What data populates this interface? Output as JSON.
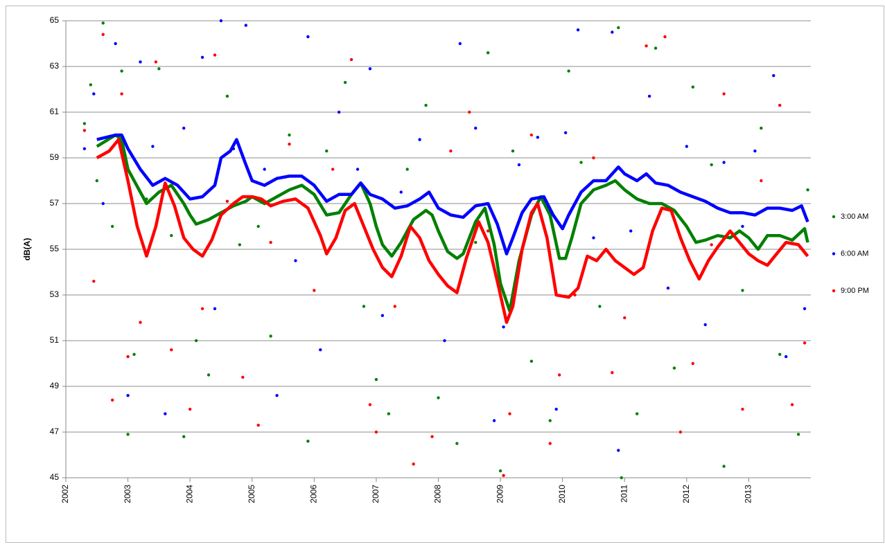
{
  "chart_data": {
    "type": "scatter",
    "y_label": "dB(A)",
    "xlim": [
      2002,
      2014
    ],
    "xticks": [
      2002,
      2003,
      2004,
      2005,
      2006,
      2007,
      2008,
      2009,
      2010,
      2011,
      2012,
      2013
    ],
    "ylim": [
      45,
      65
    ],
    "yticks": [
      45,
      47,
      49,
      51,
      53,
      55,
      57,
      59,
      61,
      63,
      65
    ],
    "grid": true,
    "legend": "right",
    "series": [
      {
        "name": "3:00 AM",
        "color": "#008000",
        "points": {
          "x": [
            2002.3,
            2002.4,
            2002.5,
            2002.6,
            2002.75,
            2002.9,
            2003.0,
            2003.1,
            2003.3,
            2003.5,
            2003.7,
            2003.9,
            2004.1,
            2004.3,
            2004.6,
            2004.8,
            2005.1,
            2005.3,
            2005.6,
            2005.9,
            2006.2,
            2006.5,
            2006.8,
            2007.0,
            2007.2,
            2007.5,
            2007.8,
            2008.0,
            2008.3,
            2008.6,
            2008.8,
            2009.0,
            2009.2,
            2009.5,
            2009.8,
            2010.1,
            2010.3,
            2010.6,
            2010.9,
            2010.95,
            2011.2,
            2011.5,
            2011.8,
            2012.1,
            2012.4,
            2012.6,
            2012.9,
            2013.2,
            2013.5,
            2013.8,
            2013.95
          ],
          "values": [
            60.5,
            62.2,
            58,
            64.9,
            56,
            62.8,
            46.9,
            50.4,
            57.2,
            62.9,
            55.6,
            46.8,
            51,
            49.5,
            61.7,
            55.2,
            56,
            51.2,
            60,
            46.6,
            59.3,
            62.3,
            52.5,
            49.3,
            47.8,
            58.5,
            61.3,
            48.5,
            46.5,
            55.3,
            63.6,
            45.3,
            59.3,
            50.1,
            47.5,
            62.8,
            58.8,
            52.5,
            64.7,
            45,
            47.8,
            63.8,
            49.8,
            62.1,
            58.7,
            45.5,
            53.2,
            60.3,
            50.4,
            46.9,
            57.6
          ]
        },
        "trend": {
          "x": [
            2002.5,
            2002.8,
            2002.9,
            2003.0,
            2003.2,
            2003.3,
            2003.5,
            2003.7,
            2003.9,
            2004.0,
            2004.1,
            2004.3,
            2004.5,
            2004.7,
            2004.9,
            2005.0,
            2005.2,
            2005.4,
            2005.6,
            2005.8,
            2006.0,
            2006.2,
            2006.4,
            2006.6,
            2006.75,
            2006.9,
            2007.0,
            2007.1,
            2007.25,
            2007.4,
            2007.6,
            2007.8,
            2007.9,
            2008.0,
            2008.15,
            2008.3,
            2008.4,
            2008.6,
            2008.75,
            2008.9,
            2009.0,
            2009.15,
            2009.3,
            2009.5,
            2009.65,
            2009.8,
            2009.95,
            2010.05,
            2010.15,
            2010.3,
            2010.5,
            2010.7,
            2010.85,
            2011.0,
            2011.2,
            2011.4,
            2011.6,
            2011.8,
            2012.0,
            2012.15,
            2012.3,
            2012.5,
            2012.7,
            2012.85,
            2013.0,
            2013.15,
            2013.3,
            2013.5,
            2013.7,
            2013.9,
            2013.95
          ],
          "values": [
            59.5,
            60,
            59.8,
            58.5,
            57.5,
            57,
            57.5,
            57.8,
            57,
            56.5,
            56.1,
            56.3,
            56.6,
            56.9,
            57.1,
            57.3,
            57,
            57.3,
            57.6,
            57.8,
            57.4,
            56.5,
            56.6,
            57.4,
            57.9,
            57,
            56,
            55.2,
            54.7,
            55.3,
            56.3,
            56.7,
            56.5,
            55.8,
            54.9,
            54.6,
            54.8,
            56.2,
            56.8,
            55.2,
            53.5,
            52.3,
            54.5,
            56.5,
            57.3,
            56.5,
            54.6,
            54.6,
            55.5,
            57,
            57.6,
            57.8,
            58,
            57.6,
            57.2,
            57,
            57,
            56.7,
            56,
            55.3,
            55.4,
            55.6,
            55.5,
            55.8,
            55.5,
            55,
            55.6,
            55.6,
            55.4,
            55.9,
            55.3
          ]
        }
      },
      {
        "name": "6:00 AM",
        "color": "#0000ff",
        "points": {
          "x": [
            2002.3,
            2002.45,
            2002.6,
            2002.8,
            2003.0,
            2003.2,
            2003.4,
            2003.6,
            2003.9,
            2004.2,
            2004.4,
            2004.5,
            2004.7,
            2004.9,
            2005.2,
            2005.4,
            2005.7,
            2005.9,
            2006.1,
            2006.4,
            2006.7,
            2006.9,
            2007.1,
            2007.4,
            2007.7,
            2008.1,
            2008.35,
            2008.6,
            2008.9,
            2009.05,
            2009.3,
            2009.6,
            2009.9,
            2010.05,
            2010.25,
            2010.5,
            2010.8,
            2010.9,
            2011.1,
            2011.4,
            2011.7,
            2012.0,
            2012.3,
            2012.6,
            2012.9,
            2013.1,
            2013.4,
            2013.6,
            2013.9
          ],
          "values": [
            59.4,
            61.8,
            57,
            64,
            48.6,
            63.2,
            59.5,
            47.8,
            60.3,
            63.4,
            52.4,
            65,
            59.4,
            64.8,
            58.5,
            48.6,
            54.5,
            64.3,
            50.6,
            61,
            58.5,
            62.9,
            52.1,
            57.5,
            59.8,
            51,
            64,
            60.3,
            47.5,
            51.6,
            58.7,
            59.9,
            48,
            60.1,
            64.6,
            55.5,
            64.5,
            46.2,
            55.8,
            61.7,
            53.3,
            59.5,
            51.7,
            58.8,
            56,
            59.3,
            62.6,
            50.3,
            52.4
          ]
        },
        "trend": {
          "x": [
            2002.5,
            2002.8,
            2002.9,
            2003.0,
            2003.2,
            2003.4,
            2003.6,
            2003.8,
            2004.0,
            2004.2,
            2004.4,
            2004.5,
            2004.65,
            2004.75,
            2004.9,
            2005.0,
            2005.2,
            2005.4,
            2005.6,
            2005.8,
            2006.0,
            2006.2,
            2006.4,
            2006.6,
            2006.75,
            2006.9,
            2007.1,
            2007.3,
            2007.5,
            2007.7,
            2007.85,
            2008.0,
            2008.2,
            2008.4,
            2008.6,
            2008.8,
            2008.95,
            2009.1,
            2009.2,
            2009.35,
            2009.5,
            2009.7,
            2009.85,
            2010.0,
            2010.1,
            2010.3,
            2010.5,
            2010.7,
            2010.9,
            2011.0,
            2011.2,
            2011.35,
            2011.5,
            2011.7,
            2011.9,
            2012.1,
            2012.3,
            2012.5,
            2012.7,
            2012.9,
            2013.1,
            2013.3,
            2013.5,
            2013.7,
            2013.85,
            2013.95
          ],
          "values": [
            59.8,
            60,
            60,
            59.4,
            58.5,
            57.8,
            58.1,
            57.8,
            57.2,
            57.3,
            57.8,
            59,
            59.3,
            59.8,
            58.7,
            58,
            57.8,
            58.1,
            58.2,
            58.2,
            57.8,
            57.1,
            57.4,
            57.4,
            57.9,
            57.4,
            57.2,
            56.8,
            56.9,
            57.2,
            57.5,
            56.8,
            56.5,
            56.4,
            56.9,
            57,
            56.1,
            54.8,
            55.5,
            56.6,
            57.2,
            57.3,
            56.5,
            55.9,
            56.5,
            57.5,
            58,
            58,
            58.6,
            58.3,
            58,
            58.3,
            57.9,
            57.8,
            57.5,
            57.3,
            57.1,
            56.8,
            56.6,
            56.6,
            56.5,
            56.8,
            56.8,
            56.7,
            56.9,
            56.2
          ]
        }
      },
      {
        "name": "9:00 PM",
        "color": "#ff0000",
        "points": {
          "x": [
            2002.3,
            2002.45,
            2002.6,
            2002.75,
            2002.9,
            2003.0,
            2003.2,
            2003.45,
            2003.7,
            2004.0,
            2004.2,
            2004.4,
            2004.6,
            2004.85,
            2005.1,
            2005.3,
            2005.6,
            2006.0,
            2006.3,
            2006.6,
            2006.9,
            2007.0,
            2007.3,
            2007.6,
            2007.9,
            2008.2,
            2008.5,
            2008.8,
            2009.05,
            2009.15,
            2009.5,
            2009.8,
            2009.95,
            2010.2,
            2010.5,
            2010.8,
            2011.0,
            2011.35,
            2011.65,
            2011.9,
            2012.1,
            2012.4,
            2012.6,
            2012.9,
            2013.2,
            2013.5,
            2013.7,
            2013.9
          ],
          "values": [
            60.2,
            53.6,
            64.4,
            48.4,
            61.8,
            50.3,
            51.8,
            63.2,
            50.6,
            48,
            52.4,
            63.5,
            57.1,
            49.4,
            47.3,
            55.3,
            59.6,
            53.2,
            58.5,
            63.3,
            48.2,
            47,
            52.5,
            45.6,
            46.8,
            59.3,
            61,
            55.8,
            45.1,
            47.8,
            60,
            46.5,
            49.5,
            53,
            59,
            49.6,
            52,
            63.9,
            64.3,
            47,
            50,
            55.2,
            61.8,
            48,
            58,
            61.3,
            48.2,
            50.9
          ]
        },
        "trend": {
          "x": [
            2002.5,
            2002.7,
            2002.85,
            2003.0,
            2003.15,
            2003.3,
            2003.45,
            2003.6,
            2003.75,
            2003.9,
            2004.05,
            2004.2,
            2004.35,
            2004.5,
            2004.7,
            2004.85,
            2005.0,
            2005.15,
            2005.3,
            2005.5,
            2005.7,
            2005.9,
            2006.1,
            2006.2,
            2006.35,
            2006.5,
            2006.65,
            2006.8,
            2006.95,
            2007.1,
            2007.25,
            2007.4,
            2007.55,
            2007.7,
            2007.85,
            2008.0,
            2008.15,
            2008.3,
            2008.45,
            2008.65,
            2008.8,
            2008.95,
            2009.1,
            2009.2,
            2009.35,
            2009.5,
            2009.6,
            2009.75,
            2009.9,
            2010.1,
            2010.25,
            2010.4,
            2010.55,
            2010.7,
            2010.85,
            2011.0,
            2011.15,
            2011.3,
            2011.45,
            2011.6,
            2011.75,
            2011.9,
            2012.05,
            2012.2,
            2012.35,
            2012.5,
            2012.7,
            2012.85,
            2013.0,
            2013.15,
            2013.3,
            2013.45,
            2013.6,
            2013.8,
            2013.95
          ],
          "values": [
            59,
            59.3,
            59.8,
            58,
            56,
            54.7,
            56,
            57.9,
            56.9,
            55.5,
            55,
            54.7,
            55.4,
            56.5,
            57,
            57.3,
            57.3,
            57.2,
            56.9,
            57.1,
            57.2,
            56.8,
            55.6,
            54.8,
            55.5,
            56.7,
            57,
            56,
            55,
            54.2,
            53.8,
            54.7,
            56,
            55.5,
            54.5,
            53.9,
            53.4,
            53.1,
            54.6,
            56.2,
            55.3,
            53.6,
            51.8,
            52.5,
            55,
            56.6,
            57,
            55.5,
            53,
            52.9,
            53.3,
            54.7,
            54.5,
            55,
            54.5,
            54.2,
            53.9,
            54.2,
            55.8,
            56.8,
            56.7,
            55.5,
            54.5,
            53.7,
            54.5,
            55.1,
            55.8,
            55.3,
            54.8,
            54.5,
            54.3,
            54.8,
            55.3,
            55.2,
            54.7
          ]
        }
      }
    ]
  }
}
